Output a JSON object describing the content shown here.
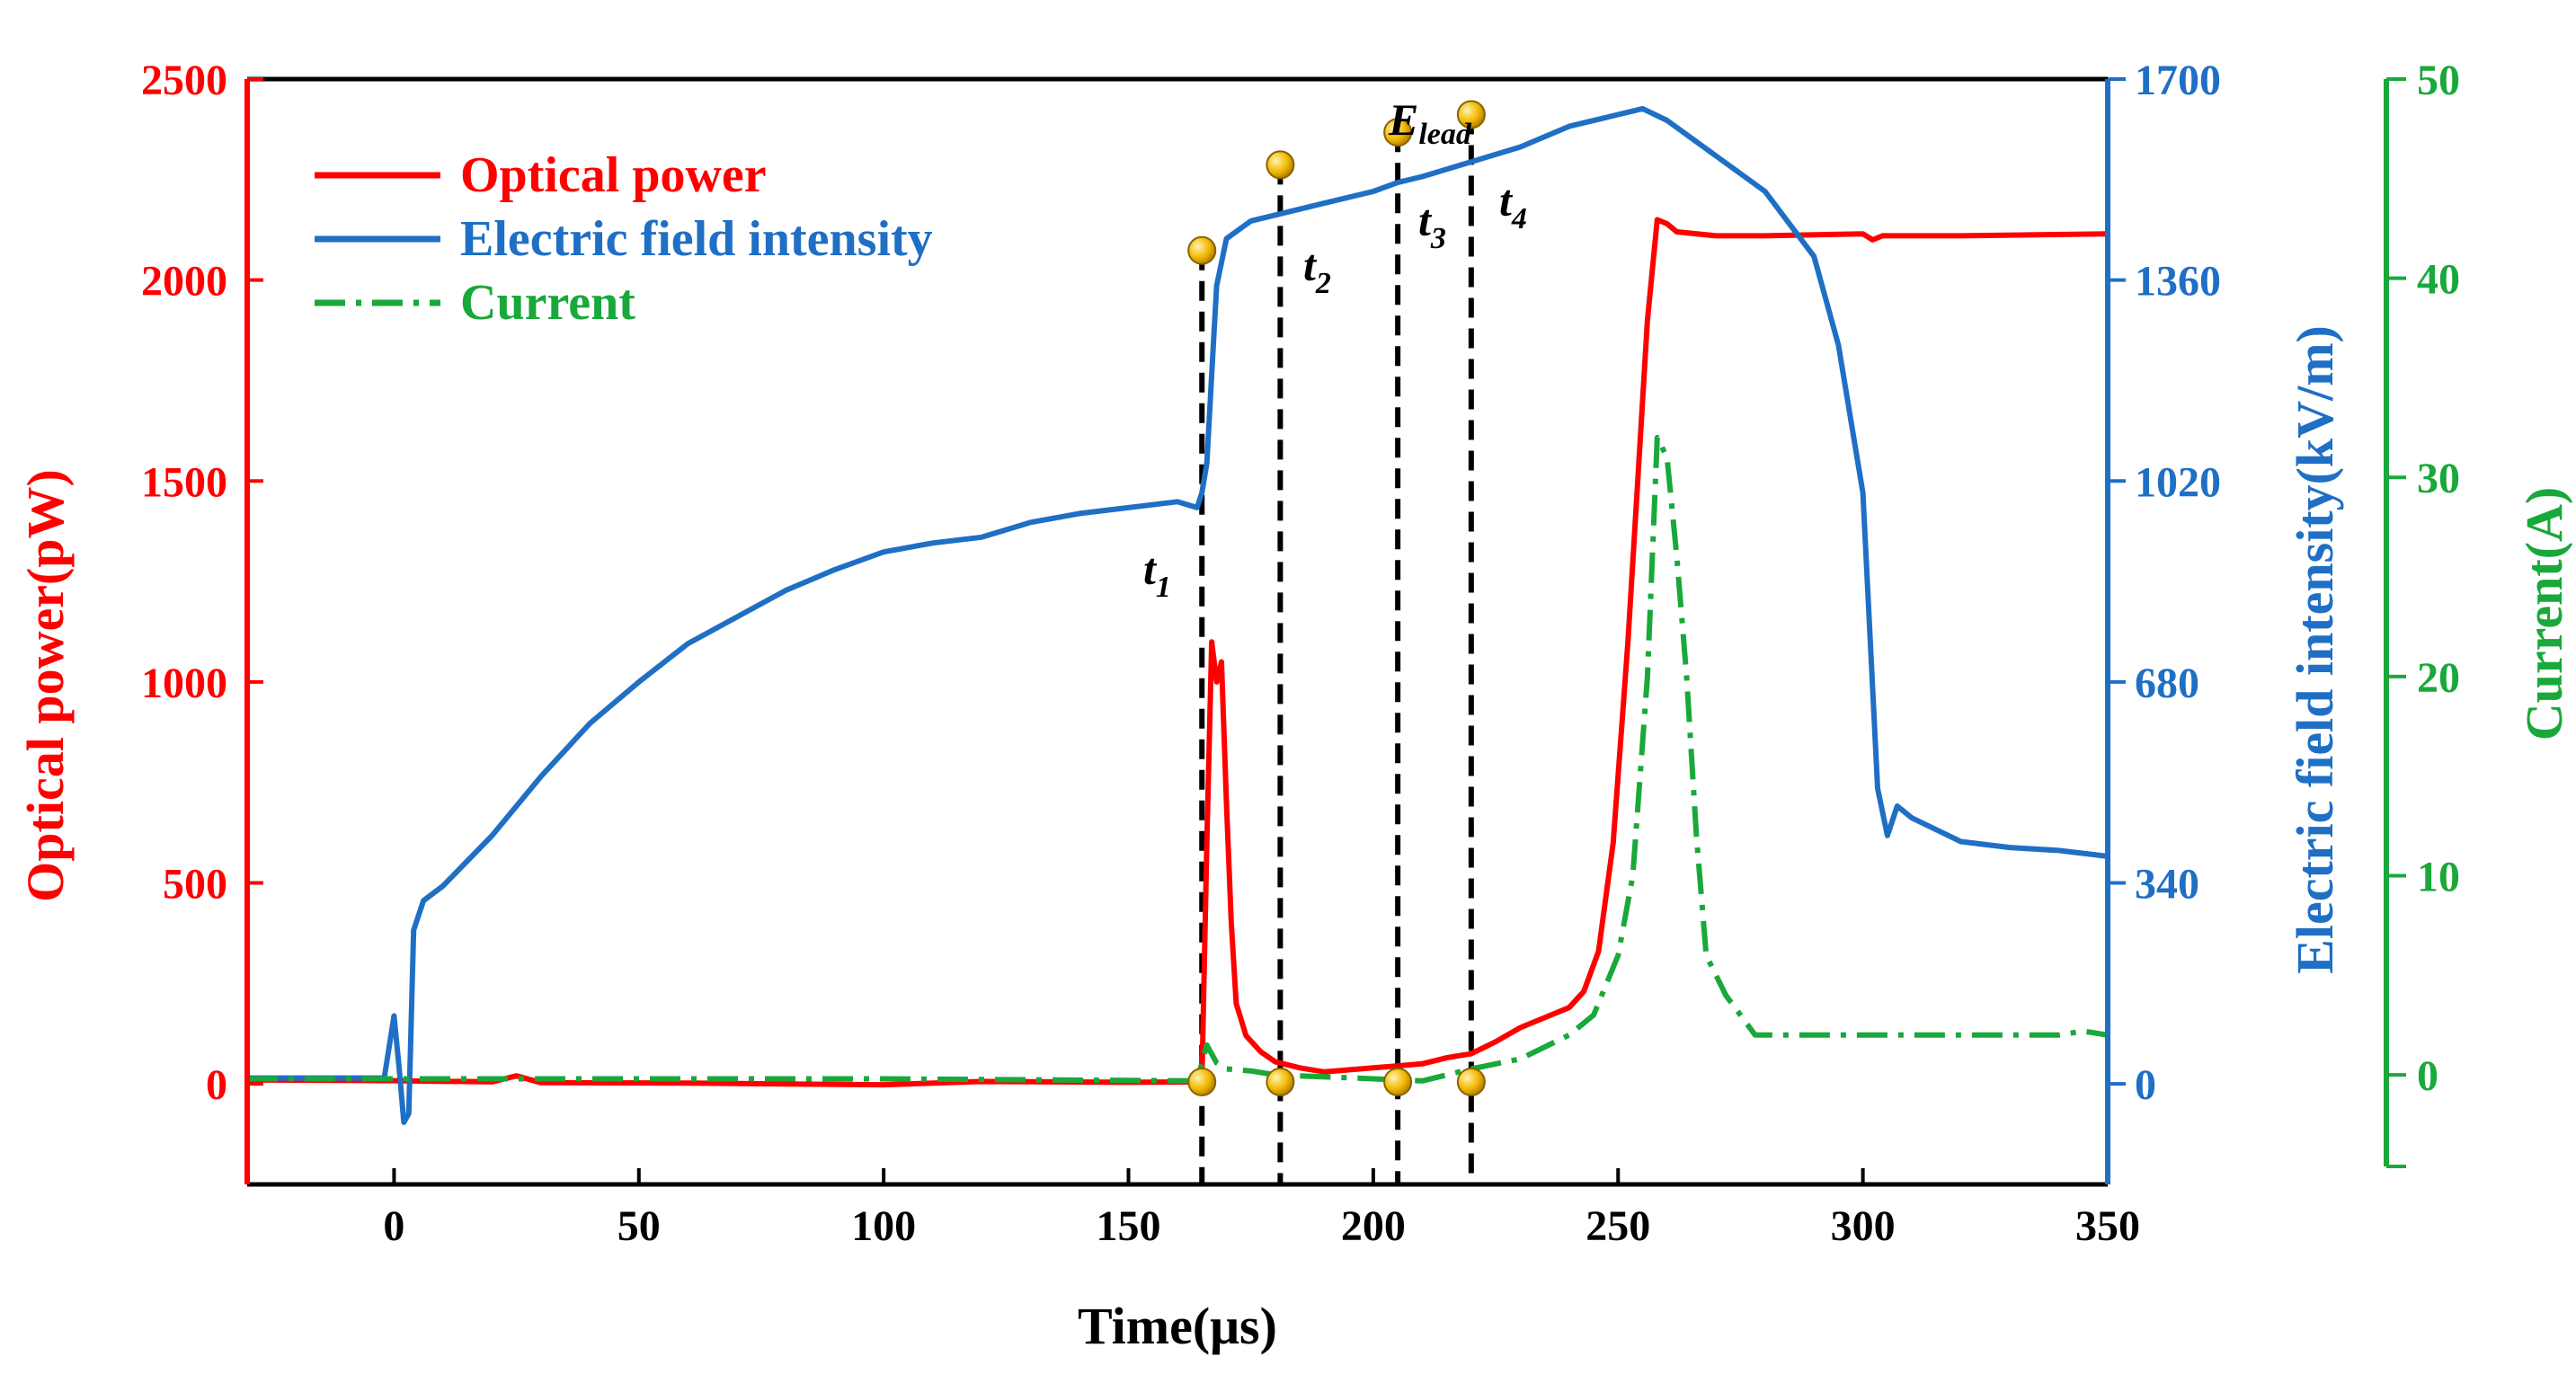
{
  "chart_data": {
    "type": "line",
    "xlabel": "Time(μs)",
    "xlim": [
      -30,
      350
    ],
    "x_ticks": [
      0,
      50,
      100,
      150,
      200,
      250,
      300,
      350
    ],
    "axes": {
      "left": {
        "label": "Optical power(pW)",
        "color": "#ff0000",
        "lim": [
          -250,
          2500
        ],
        "ticks": [
          0,
          500,
          1000,
          1500,
          2000,
          2500
        ]
      },
      "right1": {
        "label": "Electric field intensity(kV/m)",
        "color": "#1f6fc5",
        "lim": [
          -170,
          1700
        ],
        "ticks": [
          0,
          340,
          680,
          1020,
          1360,
          1700
        ]
      },
      "right2": {
        "label": "Current(A)",
        "color": "#19a83a",
        "lim": [
          -5.5,
          50
        ],
        "ticks": [
          0,
          10,
          20,
          30,
          40,
          50
        ]
      }
    },
    "legend": {
      "position": "top-left"
    },
    "series": [
      {
        "name": "Optical power",
        "axis": "left",
        "color": "#ff0000",
        "style": "solid",
        "points": [
          [
            -30,
            10
          ],
          [
            0,
            8
          ],
          [
            20,
            5
          ],
          [
            25,
            20
          ],
          [
            30,
            3
          ],
          [
            60,
            2
          ],
          [
            100,
            -2
          ],
          [
            120,
            6
          ],
          [
            150,
            4
          ],
          [
            165,
            5
          ],
          [
            166,
            600
          ],
          [
            167,
            1100
          ],
          [
            168,
            1000
          ],
          [
            169,
            1050
          ],
          [
            170,
            700
          ],
          [
            171,
            400
          ],
          [
            172,
            200
          ],
          [
            174,
            120
          ],
          [
            177,
            80
          ],
          [
            180,
            55
          ],
          [
            185,
            40
          ],
          [
            190,
            30
          ],
          [
            195,
            35
          ],
          [
            200,
            40
          ],
          [
            205,
            45
          ],
          [
            210,
            50
          ],
          [
            215,
            65
          ],
          [
            220,
            75
          ],
          [
            225,
            105
          ],
          [
            230,
            140
          ],
          [
            235,
            165
          ],
          [
            240,
            190
          ],
          [
            243,
            230
          ],
          [
            246,
            330
          ],
          [
            249,
            600
          ],
          [
            252,
            1100
          ],
          [
            254,
            1500
          ],
          [
            256,
            1900
          ],
          [
            258,
            2150
          ],
          [
            260,
            2140
          ],
          [
            262,
            2120
          ],
          [
            270,
            2110
          ],
          [
            280,
            2110
          ],
          [
            300,
            2115
          ],
          [
            302,
            2100
          ],
          [
            304,
            2110
          ],
          [
            320,
            2110
          ],
          [
            350,
            2115
          ]
        ]
      },
      {
        "name": "Electric field intensity",
        "axis": "right1",
        "color": "#1f6fc5",
        "style": "solid",
        "points": [
          [
            -30,
            10
          ],
          [
            -2,
            10
          ],
          [
            0,
            115
          ],
          [
            1,
            30
          ],
          [
            2,
            -65
          ],
          [
            3,
            -50
          ],
          [
            4,
            260
          ],
          [
            6,
            310
          ],
          [
            10,
            335
          ],
          [
            20,
            420
          ],
          [
            30,
            520
          ],
          [
            40,
            610
          ],
          [
            50,
            680
          ],
          [
            60,
            745
          ],
          [
            70,
            790
          ],
          [
            80,
            835
          ],
          [
            90,
            870
          ],
          [
            100,
            900
          ],
          [
            110,
            915
          ],
          [
            120,
            925
          ],
          [
            130,
            950
          ],
          [
            140,
            965
          ],
          [
            150,
            975
          ],
          [
            160,
            985
          ],
          [
            164,
            975
          ],
          [
            165,
            1000
          ],
          [
            166,
            1050
          ],
          [
            167,
            1200
          ],
          [
            168,
            1350
          ],
          [
            170,
            1430
          ],
          [
            175,
            1460
          ],
          [
            180,
            1470
          ],
          [
            190,
            1490
          ],
          [
            200,
            1510
          ],
          [
            205,
            1525
          ],
          [
            210,
            1535
          ],
          [
            220,
            1560
          ],
          [
            230,
            1585
          ],
          [
            240,
            1620
          ],
          [
            250,
            1640
          ],
          [
            255,
            1650
          ],
          [
            260,
            1630
          ],
          [
            265,
            1600
          ],
          [
            270,
            1570
          ],
          [
            280,
            1510
          ],
          [
            290,
            1400
          ],
          [
            295,
            1250
          ],
          [
            300,
            1000
          ],
          [
            303,
            500
          ],
          [
            305,
            420
          ],
          [
            307,
            470
          ],
          [
            310,
            450
          ],
          [
            315,
            430
          ],
          [
            320,
            410
          ],
          [
            330,
            400
          ],
          [
            340,
            395
          ],
          [
            350,
            385
          ]
        ]
      },
      {
        "name": "Current",
        "axis": "right2",
        "color": "#19a83a",
        "style": "dashdot",
        "points": [
          [
            -30,
            -0.2
          ],
          [
            100,
            -0.2
          ],
          [
            164,
            -0.3
          ],
          [
            166,
            1.5
          ],
          [
            168,
            0.6
          ],
          [
            170,
            0.3
          ],
          [
            175,
            0.2
          ],
          [
            180,
            0
          ],
          [
            200,
            -0.2
          ],
          [
            210,
            -0.3
          ],
          [
            220,
            0.3
          ],
          [
            230,
            0.8
          ],
          [
            240,
            2
          ],
          [
            245,
            3
          ],
          [
            250,
            6
          ],
          [
            253,
            10
          ],
          [
            256,
            20
          ],
          [
            258,
            32
          ],
          [
            260,
            31
          ],
          [
            262,
            26
          ],
          [
            264,
            20
          ],
          [
            266,
            12
          ],
          [
            268,
            6
          ],
          [
            270,
            5
          ],
          [
            272,
            4
          ],
          [
            275,
            3
          ],
          [
            278,
            2
          ],
          [
            300,
            2
          ],
          [
            320,
            2
          ],
          [
            340,
            2
          ],
          [
            345,
            2.2
          ],
          [
            350,
            2
          ]
        ]
      }
    ],
    "markers": [
      {
        "x": 165,
        "y": 1410,
        "axis": "right1"
      },
      {
        "x": 181,
        "y": 1555,
        "axis": "right1"
      },
      {
        "x": 205,
        "y": 1610,
        "axis": "right1"
      },
      {
        "x": 220,
        "y": 1640,
        "axis": "right1"
      },
      {
        "x": 165,
        "y": 5,
        "axis": "left"
      },
      {
        "x": 181,
        "y": 5,
        "axis": "left"
      },
      {
        "x": 205,
        "y": 5,
        "axis": "left"
      },
      {
        "x": 220,
        "y": 5,
        "axis": "left"
      }
    ],
    "vlines": [
      165,
      181,
      205,
      220
    ],
    "annotations": [
      {
        "main": "t",
        "sub": "1"
      },
      {
        "main": "t",
        "sub": "2"
      },
      {
        "main": "t",
        "sub": "3"
      },
      {
        "main": "t",
        "sub": "4"
      },
      {
        "main": "E",
        "sub": "lead"
      }
    ]
  }
}
